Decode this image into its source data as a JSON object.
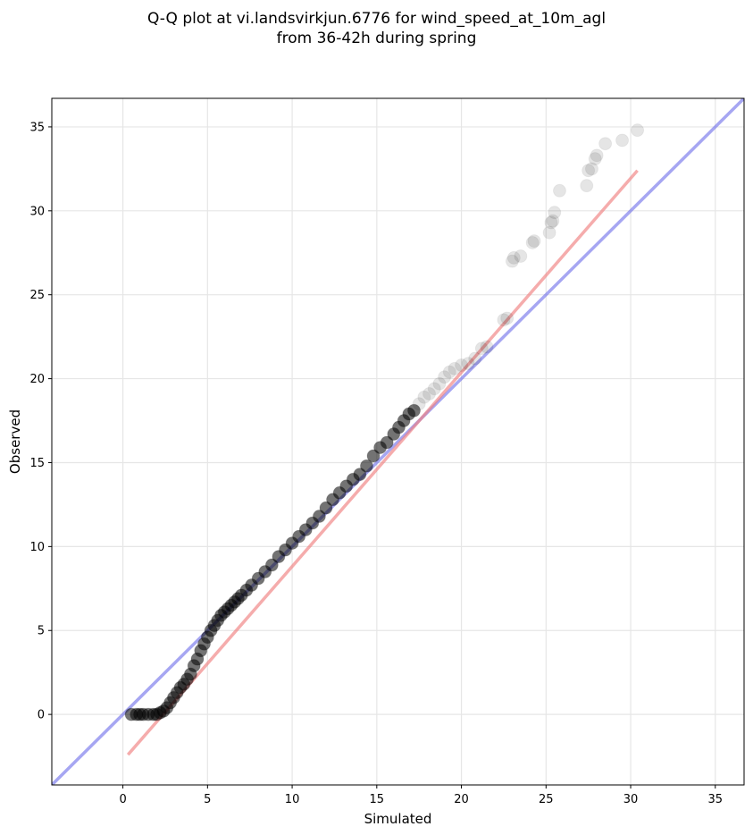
{
  "title_line1": "Q-Q plot at vi.landsvirkjun.6776 for wind_speed_at_10m_agl",
  "title_line2": "from 36-42h during spring",
  "chart_data": {
    "type": "scatter",
    "title": "Q-Q plot at vi.landsvirkjun.6776 for wind_speed_at_10m_agl from 36-42h during spring",
    "xlabel": "Simulated",
    "ylabel": "Observed",
    "xlim": [
      -4.2,
      36.7
    ],
    "ylim": [
      -4.2,
      36.7
    ],
    "xticks": [
      0,
      5,
      10,
      15,
      20,
      25,
      30,
      35
    ],
    "yticks": [
      0,
      5,
      10,
      15,
      20,
      25,
      30,
      35
    ],
    "grid": true,
    "legend": "none",
    "colors": {
      "points": "#000000",
      "fit_line": "#f08080",
      "identity_line": "#6b6bea",
      "grid": "#e6e6e6"
    },
    "fit_line": {
      "x": [
        0.3,
        30.4
      ],
      "y": [
        -2.4,
        32.4
      ]
    },
    "identity_line": {
      "x": [
        -4.2,
        36.7
      ],
      "y": [
        -4.2,
        36.7
      ]
    },
    "points": {
      "x": [
        0.5,
        0.8,
        1.0,
        1.2,
        1.5,
        1.8,
        2.0,
        2.2,
        2.4,
        2.6,
        2.8,
        3.0,
        3.2,
        3.4,
        3.6,
        3.8,
        4.0,
        4.2,
        4.4,
        4.6,
        4.8,
        5.0,
        5.2,
        5.4,
        5.6,
        5.8,
        6.0,
        6.2,
        6.4,
        6.6,
        6.8,
        7.0,
        7.3,
        7.6,
        8.0,
        8.4,
        8.8,
        9.2,
        9.6,
        10.0,
        10.4,
        10.8,
        11.2,
        11.6,
        12.0,
        12.4,
        12.8,
        13.2,
        13.6,
        14.0,
        14.4,
        14.8,
        15.2,
        15.6,
        16.0,
        16.3,
        16.6,
        16.9,
        17.2,
        17.5,
        17.8,
        18.1,
        18.4,
        18.7,
        19.0,
        19.3,
        19.6,
        20.0,
        20.4,
        20.8,
        21.2,
        21.5,
        22.5,
        22.7,
        23.0,
        23.1,
        23.5,
        24.2,
        24.3,
        25.2,
        25.3,
        25.4,
        25.5,
        25.8,
        27.4,
        27.5,
        27.7,
        27.9,
        28.0,
        28.5,
        29.5,
        30.4
      ],
      "y": [
        0.0,
        0.0,
        0.0,
        0.0,
        0.0,
        0.0,
        0.0,
        0.1,
        0.2,
        0.4,
        0.7,
        1.0,
        1.3,
        1.6,
        1.8,
        2.1,
        2.4,
        2.9,
        3.3,
        3.8,
        4.2,
        4.6,
        5.0,
        5.3,
        5.6,
        5.9,
        6.1,
        6.3,
        6.5,
        6.7,
        6.9,
        7.1,
        7.4,
        7.7,
        8.1,
        8.5,
        8.9,
        9.4,
        9.8,
        10.2,
        10.6,
        11.0,
        11.4,
        11.8,
        12.3,
        12.8,
        13.2,
        13.6,
        14.0,
        14.3,
        14.8,
        15.4,
        15.9,
        16.2,
        16.7,
        17.1,
        17.5,
        17.9,
        18.1,
        18.5,
        18.9,
        19.1,
        19.4,
        19.7,
        20.1,
        20.4,
        20.6,
        20.8,
        20.9,
        21.2,
        21.8,
        21.9,
        23.5,
        23.6,
        27.0,
        27.2,
        27.3,
        28.1,
        28.2,
        28.7,
        29.3,
        29.4,
        29.9,
        31.2,
        31.5,
        32.4,
        32.5,
        33.1,
        33.3,
        34.0,
        34.2,
        34.8
      ]
    }
  }
}
